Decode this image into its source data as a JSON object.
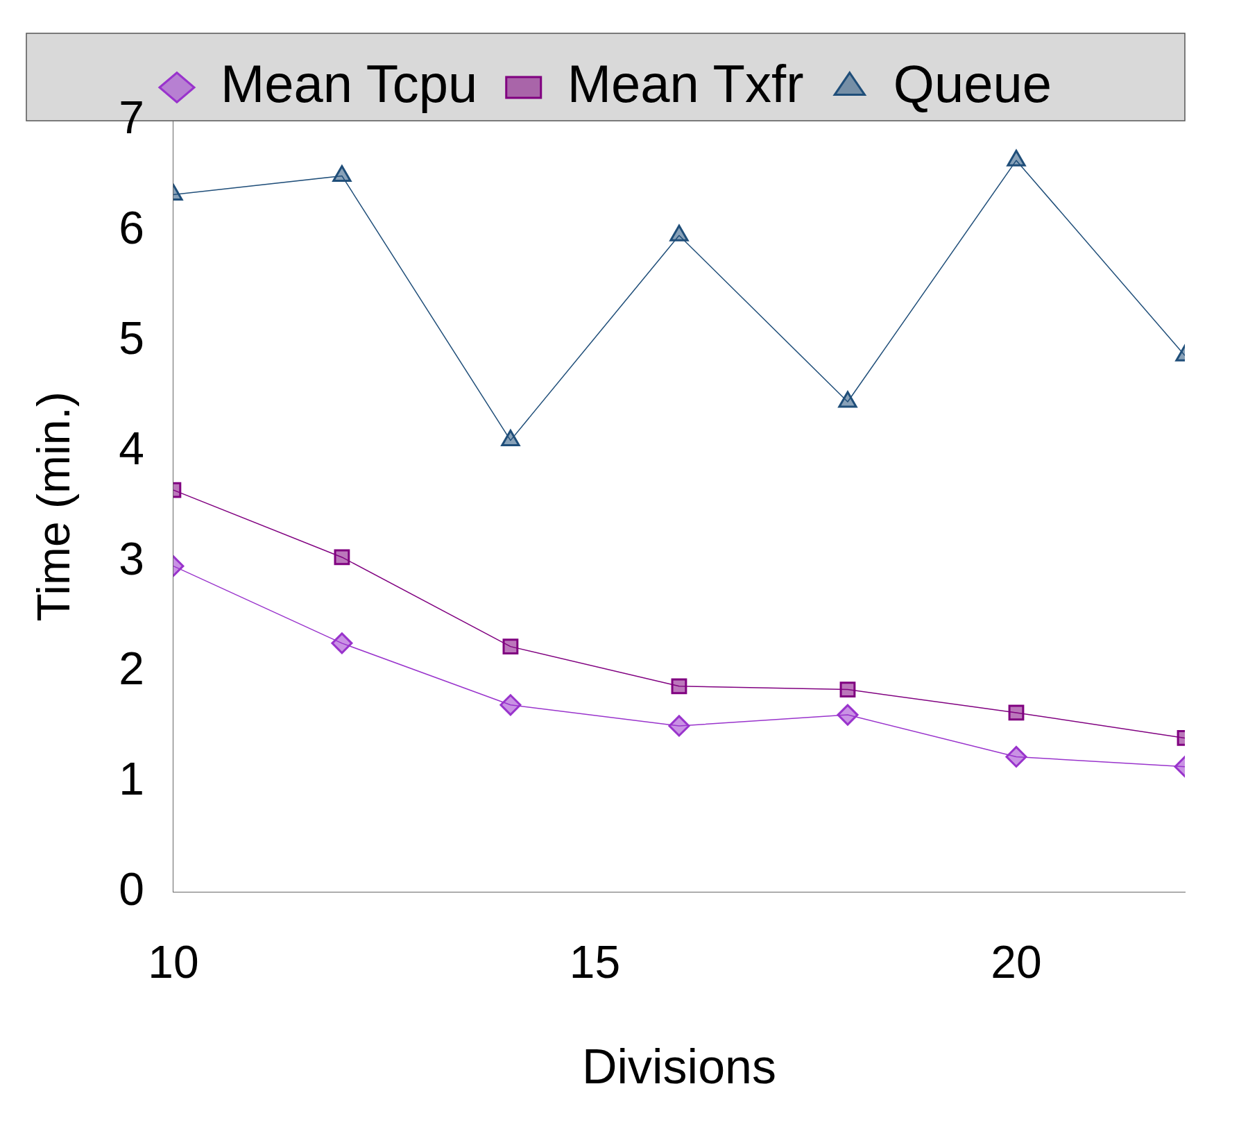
{
  "chart_data": {
    "type": "line",
    "xlabel": "Divisions",
    "ylabel": "Time (min.)",
    "x": [
      10,
      12,
      14,
      16,
      18,
      20,
      22
    ],
    "series": [
      {
        "name": "Mean Tcpu",
        "color": "#9933cc",
        "marker": "diamond",
        "values": [
          2.96,
          2.26,
          1.7,
          1.51,
          1.61,
          1.23,
          1.14
        ]
      },
      {
        "name": "Mean Txfr",
        "color": "#800080",
        "marker": "square",
        "values": [
          3.65,
          3.04,
          2.23,
          1.87,
          1.84,
          1.63,
          1.4
        ]
      },
      {
        "name": "Queue",
        "color": "#1f4e79",
        "marker": "triangle",
        "values": [
          6.33,
          6.5,
          4.1,
          5.96,
          4.45,
          6.64,
          4.87
        ]
      }
    ],
    "xlim": [
      10,
      22
    ],
    "xticks": [
      10,
      15,
      20
    ],
    "ylim": [
      0,
      7
    ],
    "yticks": [
      0,
      1,
      2,
      3,
      4,
      5,
      6,
      7
    ],
    "grid": false,
    "legend": "top",
    "line_style": "solid"
  }
}
